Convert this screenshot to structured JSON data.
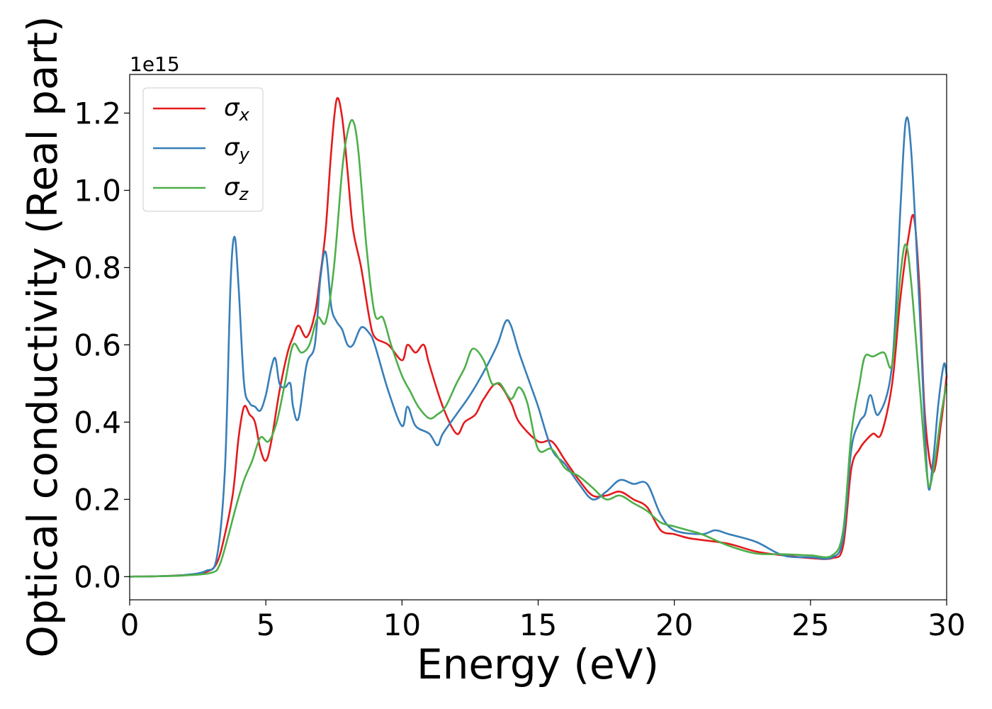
{
  "chart_data": {
    "type": "line",
    "title": "",
    "xlabel": "Energy (eV)",
    "ylabel": "Optical conductivity (Real part)",
    "y_offset_label": "1e15",
    "xlim": [
      0,
      30
    ],
    "ylim": [
      -0.06,
      1.3
    ],
    "x_ticks": [
      0,
      5,
      10,
      15,
      20,
      25,
      30
    ],
    "y_ticks": [
      0.0,
      0.2,
      0.4,
      0.6,
      0.8,
      1.0,
      1.2
    ],
    "x_tick_labels": [
      "0",
      "5",
      "10",
      "15",
      "20",
      "25",
      "30"
    ],
    "y_tick_labels": [
      "0.0",
      "0.2",
      "0.4",
      "0.6",
      "0.8",
      "1.0",
      "1.2"
    ],
    "grid": false,
    "legend_position": "top-left",
    "series": [
      {
        "name": "σx",
        "symbol": "σ",
        "subscript": "x",
        "color": "#e41a1c",
        "points": [
          [
            0,
            0
          ],
          [
            1,
            0.001
          ],
          [
            2,
            0.004
          ],
          [
            2.8,
            0.012
          ],
          [
            3.2,
            0.035
          ],
          [
            3.5,
            0.11
          ],
          [
            3.8,
            0.22
          ],
          [
            4.0,
            0.36
          ],
          [
            4.2,
            0.44
          ],
          [
            4.4,
            0.42
          ],
          [
            4.6,
            0.4
          ],
          [
            4.8,
            0.33
          ],
          [
            5.0,
            0.3
          ],
          [
            5.2,
            0.35
          ],
          [
            5.5,
            0.48
          ],
          [
            5.8,
            0.58
          ],
          [
            6.0,
            0.62
          ],
          [
            6.2,
            0.65
          ],
          [
            6.5,
            0.62
          ],
          [
            6.8,
            0.68
          ],
          [
            7.0,
            0.78
          ],
          [
            7.2,
            0.9
          ],
          [
            7.4,
            1.1
          ],
          [
            7.6,
            1.235
          ],
          [
            7.8,
            1.19
          ],
          [
            8.0,
            1.05
          ],
          [
            8.2,
            0.9
          ],
          [
            8.5,
            0.8
          ],
          [
            8.8,
            0.67
          ],
          [
            9.0,
            0.62
          ],
          [
            9.5,
            0.6
          ],
          [
            10.0,
            0.56
          ],
          [
            10.2,
            0.6
          ],
          [
            10.5,
            0.58
          ],
          [
            10.8,
            0.6
          ],
          [
            11.0,
            0.55
          ],
          [
            11.5,
            0.44
          ],
          [
            12.0,
            0.37
          ],
          [
            12.3,
            0.4
          ],
          [
            12.7,
            0.42
          ],
          [
            13.0,
            0.46
          ],
          [
            13.5,
            0.5
          ],
          [
            14.0,
            0.45
          ],
          [
            14.3,
            0.4
          ],
          [
            15.0,
            0.35
          ],
          [
            15.5,
            0.35
          ],
          [
            16.0,
            0.3
          ],
          [
            16.5,
            0.25
          ],
          [
            17.0,
            0.21
          ],
          [
            17.5,
            0.21
          ],
          [
            18.0,
            0.22
          ],
          [
            18.5,
            0.2
          ],
          [
            19.0,
            0.18
          ],
          [
            19.5,
            0.12
          ],
          [
            20.0,
            0.11
          ],
          [
            20.5,
            0.1
          ],
          [
            21.0,
            0.095
          ],
          [
            22.0,
            0.085
          ],
          [
            23.0,
            0.065
          ],
          [
            24.0,
            0.055
          ],
          [
            25.0,
            0.048
          ],
          [
            25.8,
            0.048
          ],
          [
            26.2,
            0.08
          ],
          [
            26.5,
            0.28
          ],
          [
            26.8,
            0.33
          ],
          [
            27.0,
            0.35
          ],
          [
            27.3,
            0.37
          ],
          [
            27.6,
            0.37
          ],
          [
            28.0,
            0.5
          ],
          [
            28.3,
            0.72
          ],
          [
            28.6,
            0.88
          ],
          [
            28.8,
            0.93
          ],
          [
            29.0,
            0.75
          ],
          [
            29.2,
            0.42
          ],
          [
            29.5,
            0.27
          ],
          [
            29.8,
            0.4
          ],
          [
            30.0,
            0.52
          ]
        ]
      },
      {
        "name": "σy",
        "symbol": "σ",
        "subscript": "y",
        "color": "#377eb8",
        "points": [
          [
            0,
            0
          ],
          [
            1,
            0.001
          ],
          [
            2,
            0.004
          ],
          [
            2.8,
            0.015
          ],
          [
            3.2,
            0.05
          ],
          [
            3.5,
            0.28
          ],
          [
            3.7,
            0.75
          ],
          [
            3.85,
            0.88
          ],
          [
            4.0,
            0.75
          ],
          [
            4.2,
            0.5
          ],
          [
            4.4,
            0.45
          ],
          [
            4.6,
            0.44
          ],
          [
            4.8,
            0.43
          ],
          [
            5.0,
            0.47
          ],
          [
            5.2,
            0.54
          ],
          [
            5.35,
            0.565
          ],
          [
            5.5,
            0.5
          ],
          [
            5.7,
            0.49
          ],
          [
            5.9,
            0.5
          ],
          [
            6.0,
            0.44
          ],
          [
            6.2,
            0.41
          ],
          [
            6.5,
            0.55
          ],
          [
            6.8,
            0.6
          ],
          [
            7.0,
            0.77
          ],
          [
            7.2,
            0.84
          ],
          [
            7.4,
            0.7
          ],
          [
            7.6,
            0.66
          ],
          [
            7.8,
            0.64
          ],
          [
            8.0,
            0.6
          ],
          [
            8.2,
            0.6
          ],
          [
            8.5,
            0.645
          ],
          [
            8.8,
            0.63
          ],
          [
            9.0,
            0.6
          ],
          [
            9.5,
            0.48
          ],
          [
            10.0,
            0.39
          ],
          [
            10.2,
            0.44
          ],
          [
            10.5,
            0.39
          ],
          [
            11.0,
            0.37
          ],
          [
            11.3,
            0.34
          ],
          [
            11.5,
            0.37
          ],
          [
            12.0,
            0.42
          ],
          [
            12.5,
            0.47
          ],
          [
            13.0,
            0.53
          ],
          [
            13.5,
            0.6
          ],
          [
            13.8,
            0.66
          ],
          [
            14.0,
            0.65
          ],
          [
            14.3,
            0.58
          ],
          [
            14.7,
            0.5
          ],
          [
            15.0,
            0.44
          ],
          [
            15.5,
            0.33
          ],
          [
            16.0,
            0.29
          ],
          [
            16.5,
            0.24
          ],
          [
            17.0,
            0.2
          ],
          [
            17.5,
            0.22
          ],
          [
            18.0,
            0.25
          ],
          [
            18.5,
            0.24
          ],
          [
            19.0,
            0.24
          ],
          [
            19.5,
            0.16
          ],
          [
            20.0,
            0.12
          ],
          [
            21.0,
            0.11
          ],
          [
            21.5,
            0.12
          ],
          [
            22.0,
            0.11
          ],
          [
            23.0,
            0.09
          ],
          [
            24.0,
            0.055
          ],
          [
            25.0,
            0.05
          ],
          [
            25.8,
            0.05
          ],
          [
            26.2,
            0.1
          ],
          [
            26.5,
            0.33
          ],
          [
            26.8,
            0.4
          ],
          [
            27.0,
            0.42
          ],
          [
            27.2,
            0.47
          ],
          [
            27.5,
            0.42
          ],
          [
            28.0,
            0.55
          ],
          [
            28.3,
            0.95
          ],
          [
            28.5,
            1.18
          ],
          [
            28.7,
            1.1
          ],
          [
            29.0,
            0.7
          ],
          [
            29.3,
            0.25
          ],
          [
            29.5,
            0.3
          ],
          [
            29.7,
            0.45
          ],
          [
            29.9,
            0.55
          ],
          [
            30.0,
            0.52
          ]
        ]
      },
      {
        "name": "σz",
        "symbol": "σ",
        "subscript": "z",
        "color": "#4daf4a",
        "points": [
          [
            0,
            0
          ],
          [
            1,
            0.001
          ],
          [
            2,
            0.003
          ],
          [
            3.0,
            0.01
          ],
          [
            3.3,
            0.03
          ],
          [
            3.6,
            0.1
          ],
          [
            3.9,
            0.18
          ],
          [
            4.2,
            0.25
          ],
          [
            4.5,
            0.3
          ],
          [
            4.8,
            0.36
          ],
          [
            5.1,
            0.35
          ],
          [
            5.4,
            0.4
          ],
          [
            5.7,
            0.5
          ],
          [
            6.0,
            0.6
          ],
          [
            6.3,
            0.58
          ],
          [
            6.6,
            0.6
          ],
          [
            6.9,
            0.67
          ],
          [
            7.2,
            0.66
          ],
          [
            7.5,
            0.8
          ],
          [
            7.8,
            1.05
          ],
          [
            8.0,
            1.15
          ],
          [
            8.2,
            1.18
          ],
          [
            8.4,
            1.1
          ],
          [
            8.7,
            0.85
          ],
          [
            9.0,
            0.68
          ],
          [
            9.3,
            0.67
          ],
          [
            9.6,
            0.6
          ],
          [
            10.0,
            0.52
          ],
          [
            10.3,
            0.48
          ],
          [
            10.6,
            0.44
          ],
          [
            11.0,
            0.41
          ],
          [
            11.3,
            0.42
          ],
          [
            11.6,
            0.44
          ],
          [
            12.0,
            0.5
          ],
          [
            12.3,
            0.54
          ],
          [
            12.6,
            0.59
          ],
          [
            13.0,
            0.56
          ],
          [
            13.3,
            0.5
          ],
          [
            13.6,
            0.5
          ],
          [
            14.0,
            0.46
          ],
          [
            14.3,
            0.49
          ],
          [
            14.6,
            0.45
          ],
          [
            15.0,
            0.33
          ],
          [
            15.5,
            0.33
          ],
          [
            16.0,
            0.28
          ],
          [
            16.5,
            0.26
          ],
          [
            17.0,
            0.23
          ],
          [
            17.5,
            0.2
          ],
          [
            18.0,
            0.21
          ],
          [
            18.5,
            0.19
          ],
          [
            19.0,
            0.17
          ],
          [
            19.5,
            0.14
          ],
          [
            20.0,
            0.13
          ],
          [
            20.5,
            0.12
          ],
          [
            21.0,
            0.11
          ],
          [
            22.0,
            0.08
          ],
          [
            23.0,
            0.06
          ],
          [
            24.0,
            0.058
          ],
          [
            25.0,
            0.055
          ],
          [
            25.8,
            0.055
          ],
          [
            26.2,
            0.12
          ],
          [
            26.5,
            0.37
          ],
          [
            26.8,
            0.5
          ],
          [
            27.0,
            0.57
          ],
          [
            27.3,
            0.57
          ],
          [
            27.7,
            0.58
          ],
          [
            28.0,
            0.55
          ],
          [
            28.3,
            0.78
          ],
          [
            28.5,
            0.86
          ],
          [
            28.7,
            0.76
          ],
          [
            29.0,
            0.5
          ],
          [
            29.3,
            0.25
          ],
          [
            29.5,
            0.27
          ],
          [
            29.8,
            0.42
          ],
          [
            30.0,
            0.5
          ]
        ]
      }
    ]
  }
}
